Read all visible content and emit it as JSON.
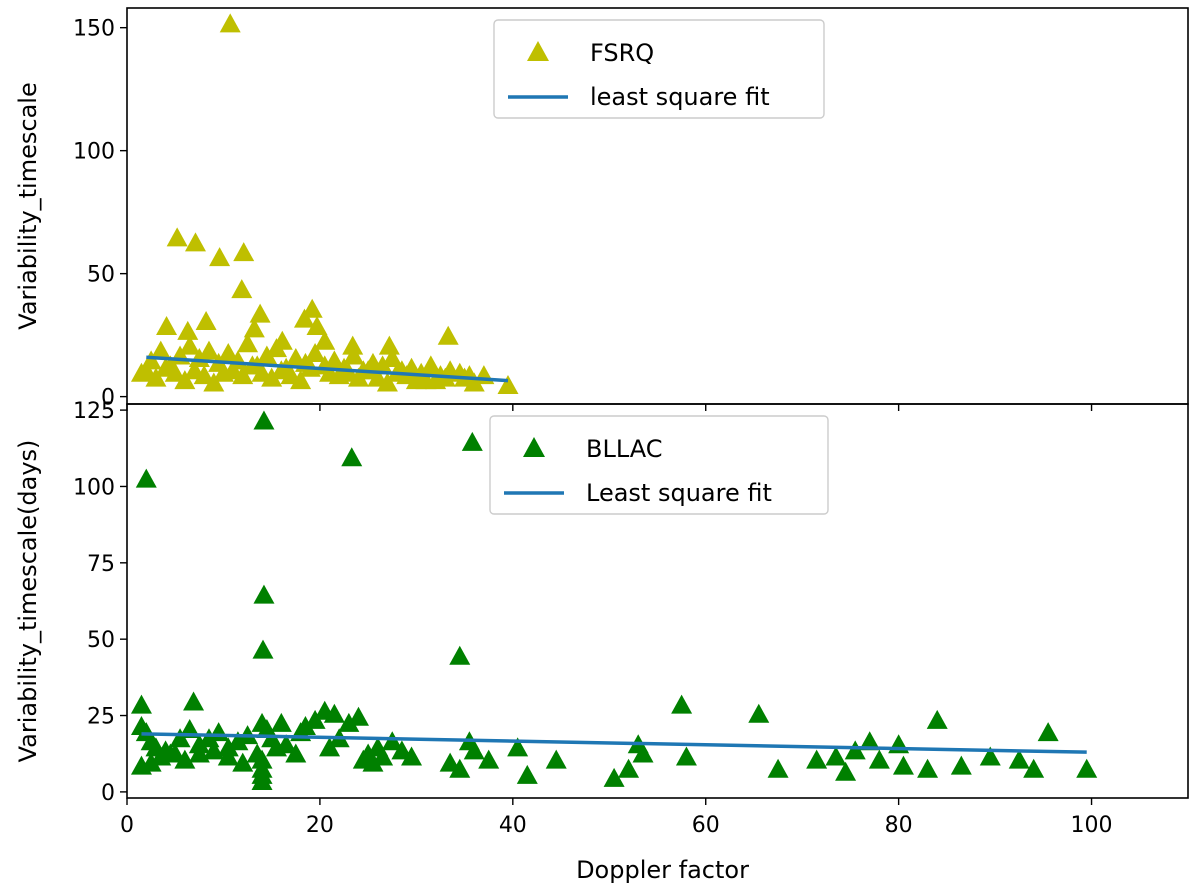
{
  "chart_data": [
    {
      "type": "scatter",
      "title": "",
      "xlabel": "",
      "ylabel": "Variability_timescale",
      "xlim": [
        0,
        110
      ],
      "ylim": [
        -3,
        158
      ],
      "yticks": [
        0,
        50,
        100,
        150
      ],
      "xticks": [
        0,
        20,
        40,
        60,
        80,
        100
      ],
      "show_x_tick_labels": false,
      "legend": {
        "position": "top-center",
        "scatter_label": "FSRQ",
        "fit_label": "least square fit"
      },
      "colors": {
        "points": "#bfbf00",
        "fit": "#1f77b4"
      },
      "fit": {
        "x": [
          2,
          39.5
        ],
        "y": [
          16,
          6.5
        ]
      },
      "series": [
        {
          "name": "FSRQ",
          "x": [
            10.7,
            5.2,
            7.1,
            9.6,
            12.1,
            11.9,
            13.8,
            19.2,
            18.4,
            19.7,
            33.3,
            4.1,
            6.3,
            8.2,
            13.2,
            16.1,
            20.5,
            23.4,
            27.2,
            1.5,
            2.5,
            3.5,
            4.5,
            5.5,
            6.5,
            7.5,
            8.5,
            9.5,
            10.5,
            11.5,
            12.5,
            13.5,
            14.5,
            15.5,
            16.5,
            17.5,
            18.5,
            19.5,
            20.5,
            21.5,
            22.5,
            23.5,
            24.5,
            25.5,
            26.5,
            27.5,
            28.5,
            29.5,
            30.5,
            31.5,
            32.5,
            33.5,
            34.5,
            35.5,
            37.0,
            39.5,
            3.0,
            6.0,
            9.0,
            12.0,
            15.0,
            18.0,
            21.0,
            24.0,
            27.0,
            30.0,
            33.0,
            36.0,
            2.0,
            5.0,
            8.0,
            11.0,
            14.0,
            17.0,
            22.0,
            26.0,
            28.0,
            31.0,
            35.0,
            4.0,
            7.0,
            10.0,
            13.0,
            16.0,
            19.0,
            23.0,
            25.0,
            29.0,
            32.0
          ],
          "y": [
            151,
            64,
            62,
            56,
            58,
            43,
            33,
            35,
            31,
            28,
            24,
            28,
            26,
            30,
            27,
            22,
            22,
            20,
            20,
            9,
            14,
            18,
            12,
            16,
            20,
            15,
            18,
            13,
            17,
            14,
            21,
            12,
            16,
            19,
            11,
            15,
            13,
            17,
            12,
            14,
            11,
            16,
            10,
            13,
            12,
            15,
            10,
            11,
            9,
            12,
            8,
            10,
            9,
            8,
            8,
            4,
            7,
            6,
            5,
            8,
            7,
            6,
            9,
            7,
            5,
            6,
            7,
            5,
            10,
            9,
            8,
            10,
            9,
            8,
            8,
            7,
            9,
            6,
            7,
            11,
            10,
            9,
            12,
            10,
            11,
            9,
            10,
            8,
            6
          ]
        }
      ]
    },
    {
      "type": "scatter",
      "title": "",
      "xlabel": "Doppler factor",
      "ylabel": "Variability_timescale(days)",
      "xlim": [
        0,
        110
      ],
      "ylim": [
        -2,
        127
      ],
      "yticks": [
        0,
        25,
        50,
        75,
        100,
        125
      ],
      "xticks": [
        0,
        20,
        40,
        60,
        80,
        100
      ],
      "show_x_tick_labels": true,
      "legend": {
        "position": "top-center",
        "scatter_label": "BLLAC",
        "fit_label": "Least square fit"
      },
      "colors": {
        "points": "#008000",
        "fit": "#1f77b4"
      },
      "fit": {
        "x": [
          1.5,
          99.5
        ],
        "y": [
          19,
          13
        ]
      },
      "series": [
        {
          "name": "BLLAC",
          "x": [
            14.2,
            2.0,
            23.3,
            35.8,
            14.2,
            14.1,
            34.5,
            1.5,
            6.9,
            1.5,
            2.0,
            2.5,
            3.0,
            4.0,
            5.0,
            5.5,
            6.5,
            7.5,
            8.5,
            9.5,
            10.5,
            11.5,
            12.5,
            13.5,
            14.0,
            14.5,
            15.0,
            15.5,
            16.0,
            16.5,
            17.5,
            18.0,
            18.5,
            19.5,
            20.5,
            21.0,
            21.5,
            22.0,
            23.0,
            24.0,
            24.5,
            25.0,
            25.5,
            26.0,
            26.5,
            27.5,
            28.5,
            29.5,
            33.5,
            34.5,
            35.5,
            36.0,
            37.5,
            40.5,
            41.5,
            44.5,
            50.5,
            52.0,
            53.0,
            53.5,
            57.5,
            58.0,
            65.5,
            67.5,
            71.5,
            73.5,
            74.5,
            75.5,
            77.0,
            78.0,
            80.0,
            80.5,
            83.0,
            84.0,
            86.5,
            89.5,
            92.5,
            94.0,
            95.5,
            99.5,
            1.5,
            2.5,
            3.5,
            4.5,
            6.0,
            7.5,
            9.0,
            10.5,
            12.0,
            14.0,
            14.0,
            14.0,
            14.0
          ],
          "y": [
            121,
            102,
            109,
            114,
            64,
            46,
            44,
            28,
            29,
            21,
            19,
            16,
            14,
            13,
            12,
            17,
            20,
            15,
            17,
            19,
            14,
            16,
            18,
            12,
            22,
            20,
            17,
            14,
            22,
            15,
            12,
            19,
            21,
            23,
            26,
            14,
            25,
            17,
            22,
            24,
            10,
            12,
            9,
            14,
            11,
            16,
            13,
            11,
            9,
            7,
            16,
            13,
            10,
            14,
            5,
            10,
            4,
            7,
            15,
            12,
            28,
            11,
            25,
            7,
            10,
            11,
            6,
            13,
            16,
            10,
            15,
            8,
            7,
            23,
            8,
            11,
            10,
            7,
            19,
            7,
            8,
            9,
            11,
            12,
            10,
            12,
            13,
            11,
            9,
            10,
            7,
            5,
            3
          ]
        }
      ]
    }
  ]
}
